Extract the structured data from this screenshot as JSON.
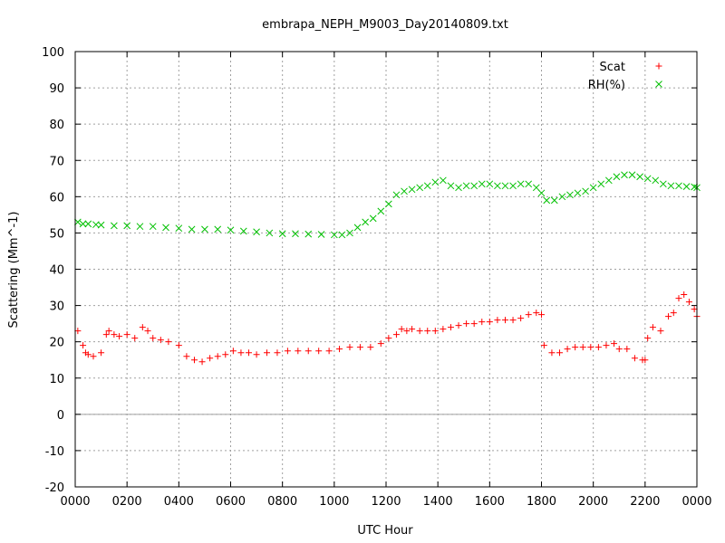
{
  "chart_data": {
    "type": "scatter",
    "title": "embrapa_NEPH_M9003_Day20140809.txt",
    "xlabel": "UTC Hour",
    "ylabel": "Scattering (Mm^-1)",
    "xlim": [
      0,
      24
    ],
    "ylim": [
      -20,
      100
    ],
    "x_ticks": [
      0,
      2,
      4,
      6,
      8,
      10,
      12,
      14,
      16,
      18,
      20,
      22,
      24
    ],
    "x_tick_labels": [
      "0000",
      "0200",
      "0400",
      "0600",
      "0800",
      "1000",
      "1200",
      "1400",
      "1600",
      "1800",
      "2000",
      "2200",
      "0000"
    ],
    "y_ticks": [
      -20,
      -10,
      0,
      10,
      20,
      30,
      40,
      50,
      60,
      70,
      80,
      90,
      100
    ],
    "grid": true,
    "zero_line": true,
    "legend_position": "top-right",
    "series": [
      {
        "name": "Scat",
        "marker": "+",
        "color": "#ff0000",
        "x": [
          0.1,
          0.3,
          0.4,
          0.5,
          0.7,
          1.0,
          1.2,
          1.3,
          1.5,
          1.7,
          2.0,
          2.3,
          2.6,
          2.8,
          3.0,
          3.3,
          3.6,
          4.0,
          4.3,
          4.6,
          4.9,
          5.2,
          5.5,
          5.8,
          6.1,
          6.4,
          6.7,
          7.0,
          7.4,
          7.8,
          8.2,
          8.6,
          9.0,
          9.4,
          9.8,
          10.2,
          10.6,
          11.0,
          11.4,
          11.8,
          12.1,
          12.4,
          12.6,
          12.8,
          13.0,
          13.3,
          13.6,
          13.9,
          14.2,
          14.5,
          14.8,
          15.1,
          15.4,
          15.7,
          16.0,
          16.3,
          16.6,
          16.9,
          17.2,
          17.5,
          17.8,
          18.0,
          18.1,
          18.4,
          18.7,
          19.0,
          19.3,
          19.6,
          19.9,
          20.2,
          20.5,
          20.8,
          21.0,
          21.3,
          21.6,
          21.9,
          22.0,
          22.1,
          22.3,
          22.6,
          22.9,
          23.1,
          23.3,
          23.5,
          23.7,
          23.9,
          24.0
        ],
        "values": [
          23,
          19,
          17,
          16.5,
          16,
          17,
          22,
          23,
          22,
          21.5,
          22,
          21,
          24,
          23,
          21,
          20.5,
          20,
          19,
          16,
          15,
          14.5,
          15.5,
          16,
          16.5,
          17.5,
          17,
          17,
          16.5,
          17,
          17,
          17.5,
          17.5,
          17.5,
          17.5,
          17.5,
          18,
          18.5,
          18.5,
          18.5,
          19.5,
          21,
          22,
          23.5,
          23,
          23.5,
          23,
          23,
          23,
          23.5,
          24,
          24.5,
          25,
          25,
          25.5,
          25.5,
          26,
          26,
          26,
          26.5,
          27.5,
          28,
          27.5,
          19,
          17,
          17,
          18,
          18.5,
          18.5,
          18.5,
          18.5,
          19,
          19.5,
          18,
          18,
          15.5,
          15,
          15,
          21,
          24,
          23,
          27,
          28,
          32,
          33,
          31,
          29,
          27
        ]
      },
      {
        "name": "RH(%)",
        "marker": "x",
        "color": "#00c000",
        "x": [
          0.1,
          0.3,
          0.5,
          0.8,
          1.0,
          1.5,
          2.0,
          2.5,
          3.0,
          3.5,
          4.0,
          4.5,
          5.0,
          5.5,
          6.0,
          6.5,
          7.0,
          7.5,
          8.0,
          8.5,
          9.0,
          9.5,
          10.0,
          10.3,
          10.6,
          10.9,
          11.2,
          11.5,
          11.8,
          12.1,
          12.4,
          12.7,
          13.0,
          13.3,
          13.6,
          13.9,
          14.2,
          14.5,
          14.8,
          15.1,
          15.4,
          15.7,
          16.0,
          16.3,
          16.6,
          16.9,
          17.2,
          17.5,
          17.8,
          18.0,
          18.2,
          18.5,
          18.8,
          19.1,
          19.4,
          19.7,
          20.0,
          20.3,
          20.6,
          20.9,
          21.2,
          21.5,
          21.8,
          22.1,
          22.4,
          22.7,
          23.0,
          23.3,
          23.6,
          23.9,
          24.0
        ],
        "values": [
          53,
          52.5,
          52.5,
          52.3,
          52.2,
          52,
          52,
          51.8,
          51.8,
          51.5,
          51.3,
          51,
          51,
          51,
          50.8,
          50.5,
          50.3,
          50,
          49.8,
          49.8,
          49.7,
          49.6,
          49.5,
          49.5,
          50,
          51.5,
          53,
          54,
          56,
          58,
          60.5,
          61.5,
          62,
          62.5,
          63,
          64,
          64.5,
          63,
          62.5,
          63,
          63,
          63.5,
          63.5,
          63,
          63,
          63,
          63.5,
          63.5,
          62.5,
          61,
          59,
          59,
          60,
          60.5,
          61,
          61.5,
          62.5,
          63.5,
          64.5,
          65.5,
          66,
          66,
          65.5,
          65,
          64.5,
          63.5,
          63,
          63,
          62.8,
          62.7,
          62.5
        ]
      }
    ]
  }
}
